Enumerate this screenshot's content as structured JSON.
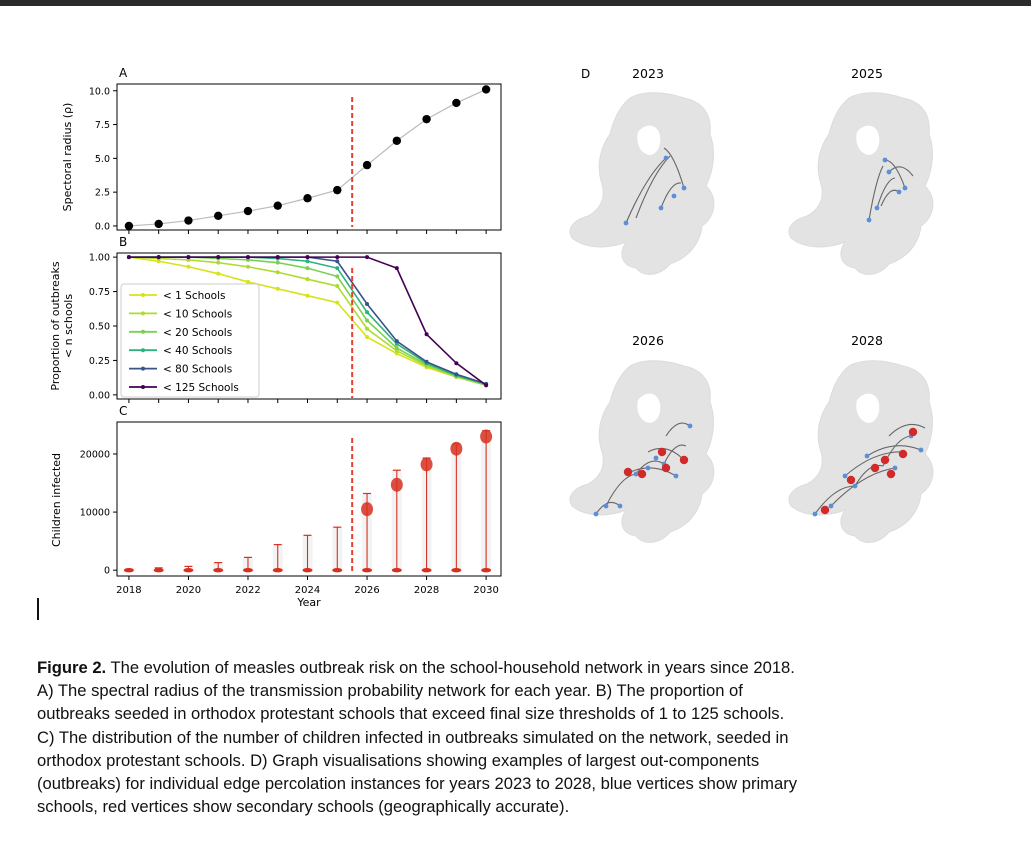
{
  "chart_data": [
    {
      "panel": "A",
      "type": "line",
      "ylabel": "Spectoral radius (ρ)",
      "x": [
        2018,
        2019,
        2020,
        2021,
        2022,
        2023,
        2024,
        2025,
        2026,
        2027,
        2028,
        2029,
        2030
      ],
      "y": [
        0.0,
        0.15,
        0.4,
        0.75,
        1.1,
        1.5,
        2.05,
        2.65,
        4.5,
        6.3,
        7.9,
        9.1,
        10.1
      ],
      "ylim": [
        -0.3,
        10.5
      ],
      "xlim": [
        2017.6,
        2030.5
      ],
      "yticks": [
        "0.0",
        "2.5",
        "5.0",
        "7.5",
        "10.0"
      ],
      "yticks_values": [
        0,
        2.5,
        5,
        7.5,
        10
      ],
      "vline_x": 2025.5,
      "line_color": "#bbbbbb",
      "marker_color": "#000000"
    },
    {
      "panel": "B",
      "type": "line",
      "ylabel": "Proportion of outbreaks",
      "ylabel2": "< n schools",
      "x": [
        2018,
        2019,
        2020,
        2021,
        2022,
        2023,
        2024,
        2025,
        2026,
        2027,
        2028,
        2029,
        2030
      ],
      "ylim": [
        -0.03,
        1.03
      ],
      "xlim": [
        2017.6,
        2030.5
      ],
      "yticks": [
        "0.00",
        "0.25",
        "0.50",
        "0.75",
        "1.00"
      ],
      "yticks_values": [
        0,
        0.25,
        0.5,
        0.75,
        1.0
      ],
      "vline_x": 2025.5,
      "legend_position": "lower-left",
      "series": [
        {
          "name": "< 1 Schools",
          "color": "#d8e219",
          "values": [
            1.0,
            0.97,
            0.93,
            0.88,
            0.82,
            0.77,
            0.72,
            0.67,
            0.42,
            0.3,
            0.2,
            0.13,
            0.07
          ]
        },
        {
          "name": "< 10 Schools",
          "color": "#addc30",
          "values": [
            1.0,
            0.99,
            0.98,
            0.96,
            0.93,
            0.89,
            0.84,
            0.79,
            0.48,
            0.32,
            0.21,
            0.13,
            0.07
          ]
        },
        {
          "name": "< 20 Schools",
          "color": "#7ad151",
          "values": [
            1.0,
            1.0,
            1.0,
            0.99,
            0.98,
            0.96,
            0.92,
            0.86,
            0.54,
            0.34,
            0.22,
            0.14,
            0.07
          ]
        },
        {
          "name": "< 40 Schools",
          "color": "#2db27d",
          "values": [
            1.0,
            1.0,
            1.0,
            1.0,
            1.0,
            0.99,
            0.97,
            0.92,
            0.6,
            0.37,
            0.23,
            0.14,
            0.08
          ]
        },
        {
          "name": "< 80 Schools",
          "color": "#3b528b",
          "values": [
            1.0,
            1.0,
            1.0,
            1.0,
            1.0,
            1.0,
            1.0,
            0.97,
            0.66,
            0.39,
            0.24,
            0.15,
            0.08
          ]
        },
        {
          "name": "< 125 Schools",
          "color": "#440154",
          "values": [
            1.0,
            1.0,
            1.0,
            1.0,
            1.0,
            1.0,
            1.0,
            1.0,
            1.0,
            0.92,
            0.44,
            0.23,
            0.07
          ]
        }
      ]
    },
    {
      "panel": "C",
      "type": "violin",
      "ylabel": "Children infected",
      "xlabel": "Year",
      "xticks": [
        "2018",
        "2020",
        "2022",
        "2024",
        "2026",
        "2028",
        "2030"
      ],
      "xticks_values": [
        2018,
        2020,
        2022,
        2024,
        2026,
        2028,
        2030
      ],
      "yticks": [
        "0",
        "10000",
        "20000"
      ],
      "yticks_values": [
        0,
        10000,
        20000
      ],
      "ylim": [
        -1000,
        25500
      ],
      "xlim": [
        2017.6,
        2030.5
      ],
      "vline_x": 2025.5,
      "x": [
        2018,
        2019,
        2020,
        2021,
        2022,
        2023,
        2024,
        2025,
        2026,
        2027,
        2028,
        2029,
        2030
      ],
      "max": [
        150,
        400,
        650,
        1300,
        2200,
        4400,
        6000,
        7400,
        13200,
        17200,
        19300,
        21700,
        24000
      ],
      "median": [
        0,
        0,
        0,
        0,
        0,
        0,
        0,
        0,
        0,
        0,
        0,
        0,
        0
      ],
      "upper_mode": [
        0,
        0,
        0,
        0,
        0,
        0,
        0,
        0,
        10500,
        14700,
        18200,
        20900,
        23000
      ],
      "color": "#d7301f"
    },
    {
      "panel": "D",
      "type": "network-maps",
      "titles": [
        "2023",
        "2025",
        "2026",
        "2028"
      ]
    }
  ],
  "panel_labels": {
    "a": "A",
    "b": "B",
    "c": "C",
    "d": "D"
  },
  "caption": {
    "label": "Figure 2.",
    "line1": " The evolution of measles outbreak risk on the school-household network in years since 2018.",
    "line2": "A) The spectral radius of the transmission probability network for each year. B) The proportion of",
    "line3": "outbreaks seeded in orthodox protestant schools that exceed final size thresholds of 1 to 125 schools.",
    "line4": "C) The distribution of the number of children infected in outbreaks simulated on the network, seeded in",
    "line5": "orthodox protestant schools. D) Graph visualisations showing examples of largest out-components",
    "line6": "(outbreaks) for individual edge percolation instances for years 2023 to 2028, blue vertices show primary",
    "line7": "schools, red vertices show secondary schools (geographically accurate)."
  },
  "colors": {
    "vline": "#e8412f",
    "map_land": "#e3e3e3",
    "edge": "#666666",
    "blue_node": "#5b8fd6",
    "red_node": "#d02a2a"
  }
}
